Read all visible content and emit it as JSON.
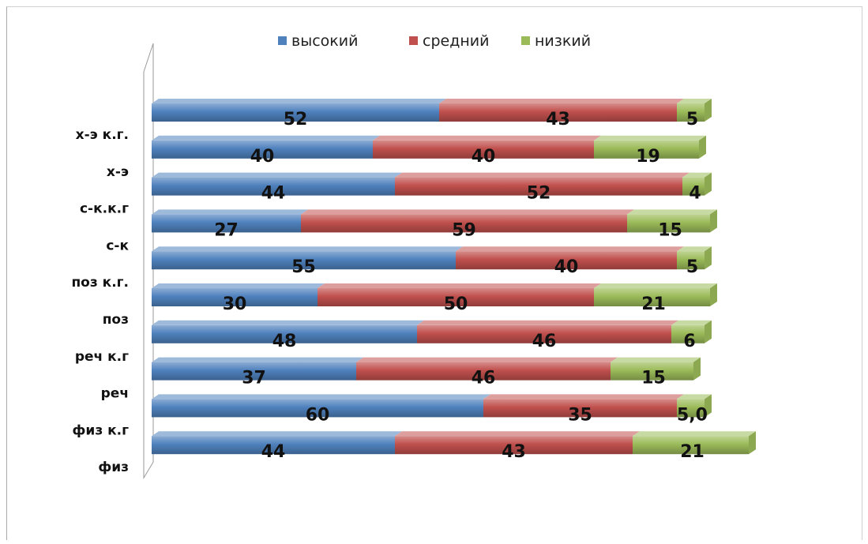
{
  "chart_data": {
    "type": "bar",
    "orientation": "horizontal",
    "stacked": true,
    "title": "",
    "xlabel": "",
    "ylabel": "",
    "legend_position": "top",
    "categories": [
      "х-э к.г.",
      "х-э",
      "с-к.к.г",
      "с-к",
      "поз к.г.",
      "поз",
      "реч к.г",
      "реч",
      "физ к.г",
      "физ"
    ],
    "series": [
      {
        "name": "высокий",
        "color": "#4f81bd",
        "values": [
          52,
          40,
          44,
          27,
          55,
          30,
          48,
          37,
          60,
          44
        ]
      },
      {
        "name": "средний",
        "color": "#c0504d",
        "values": [
          43,
          40,
          52,
          59,
          40,
          50,
          46,
          46,
          35,
          43
        ]
      },
      {
        "name": "низкий",
        "color": "#9bbb59",
        "values": [
          5,
          19,
          4,
          15,
          5,
          21,
          6,
          15,
          5.0,
          21
        ]
      }
    ],
    "value_labels": [
      [
        "52",
        "43",
        "5"
      ],
      [
        "40",
        "40",
        "19"
      ],
      [
        "44",
        "52",
        "4"
      ],
      [
        "27",
        "59",
        "15"
      ],
      [
        "55",
        "40",
        "5"
      ],
      [
        "30",
        "50",
        "21"
      ],
      [
        "48",
        "46",
        "6"
      ],
      [
        "37",
        "46",
        "15"
      ],
      [
        "60",
        "35",
        "5,0"
      ],
      [
        "44",
        "43",
        "21"
      ]
    ]
  }
}
